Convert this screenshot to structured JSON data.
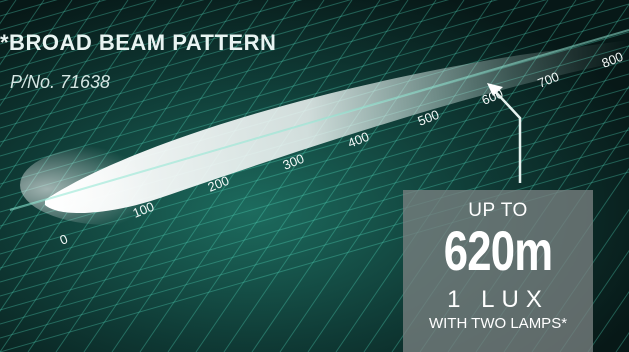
{
  "title": "*BROAD BEAM PATTERN",
  "part_number": "P/No. 71638",
  "scale_labels": [
    "0",
    "100",
    "200",
    "300",
    "400",
    "500",
    "600",
    "700",
    "800"
  ],
  "callout": {
    "prefix": "UP TO",
    "distance": "620m",
    "lux": "1 LUX",
    "note": "WITH TWO LAMPS*"
  },
  "colors": {
    "grid": "#4fd3b8",
    "beam": "#ffffff",
    "panel": "#7f8787"
  }
}
